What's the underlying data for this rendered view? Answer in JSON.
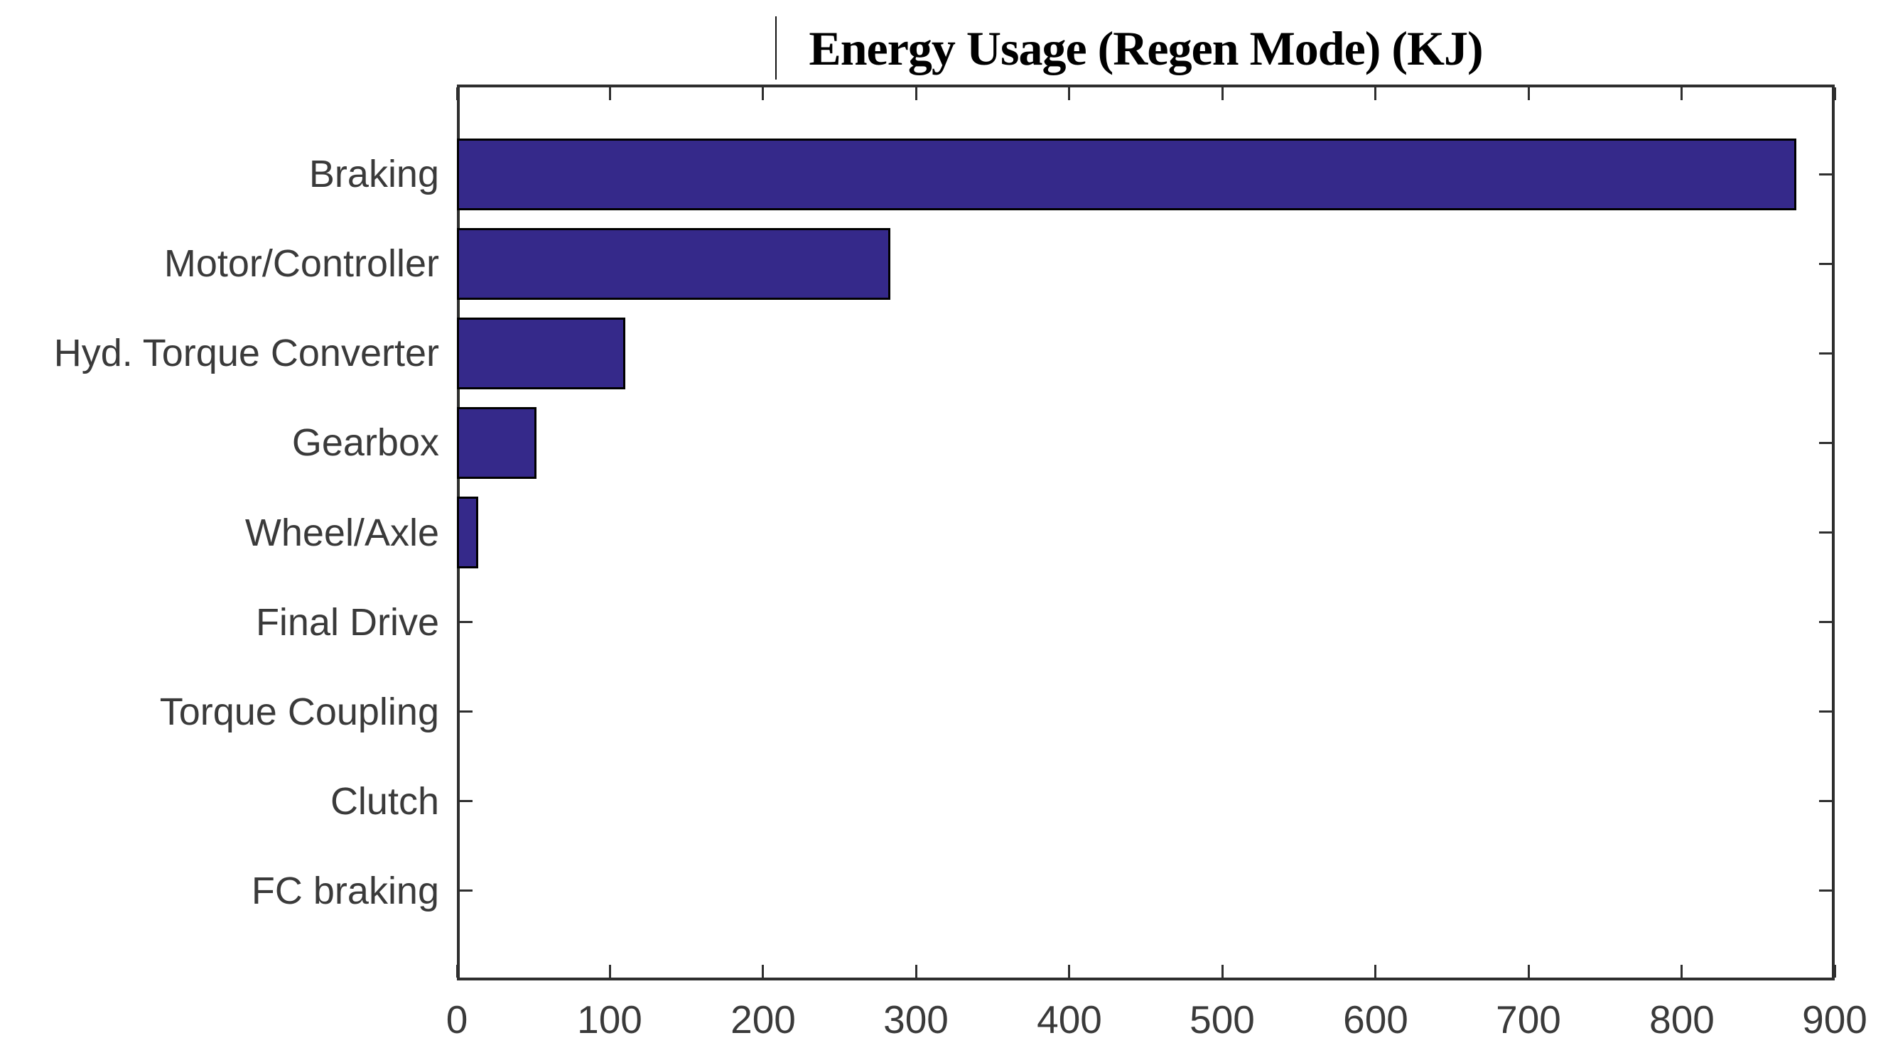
{
  "title": "Energy Usage (Regen Mode) (KJ)",
  "artifacts": {
    "title_text_cursor_visible": true
  },
  "chart_data": {
    "type": "bar",
    "orientation": "horizontal",
    "title": "Energy Usage (Regen Mode) (KJ)",
    "categories": [
      "Braking",
      "Motor/Controller",
      "Hyd. Torque Converter",
      "Gearbox",
      "Wheel/Axle",
      "Final Drive",
      "Torque Coupling",
      "Clutch",
      "FC braking"
    ],
    "values": [
      875,
      283,
      110,
      52,
      14,
      0,
      0,
      0,
      0
    ],
    "xlabel": "",
    "ylabel": "",
    "xlim": [
      0,
      900
    ],
    "xticks": [
      0,
      100,
      200,
      300,
      400,
      500,
      600,
      700,
      800,
      900
    ],
    "grid": false,
    "legend": null,
    "box": true,
    "tick_direction": "in",
    "bar_fill_color": "#35298A",
    "bar_edge_color": "#000000",
    "axis_color": "#2e2e2e",
    "text_color": "#3a3a3a",
    "title_color": "#000000",
    "background_color": "#ffffff"
  }
}
